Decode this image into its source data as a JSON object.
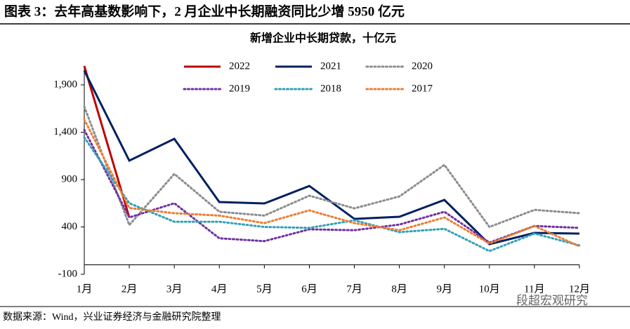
{
  "chart_data": {
    "type": "line",
    "figure_title": "图表 3：去年高基数影响下，2 月企业中长期融资同比少增 5950 亿元",
    "title": "新增企业中长期贷款，十亿元",
    "source": "数据来源：Wind，兴业证券经济与金融研究院整理",
    "watermark": "段超宏观研究",
    "categories": [
      "1月",
      "2月",
      "3月",
      "4月",
      "5月",
      "6月",
      "7月",
      "8月",
      "9月",
      "10月",
      "11月",
      "12月"
    ],
    "ylim": [
      -100,
      2100
    ],
    "yticks": [
      -100,
      400,
      900,
      {
        "value": 1400,
        "label": "1,400"
      },
      {
        "value": 1900,
        "label": "1,900"
      }
    ],
    "series": [
      {
        "name": "2022",
        "color": "#c00000",
        "style": "solid",
        "values": [
          2100,
          500,
          null,
          null,
          null,
          null,
          null,
          null,
          null,
          null,
          null,
          null
        ]
      },
      {
        "name": "2021",
        "color": "#002060",
        "style": "solid",
        "values": [
          2050,
          1100,
          1330,
          663,
          648,
          833,
          485,
          507,
          685,
          218,
          337,
          330
        ]
      },
      {
        "name": "2020",
        "color": "#8c8c8c",
        "style": "dotted",
        "values": [
          1670,
          420,
          960,
          560,
          520,
          730,
          596,
          722,
          1055,
          400,
          580,
          545
        ]
      },
      {
        "name": "2019",
        "color": "#7030a0",
        "style": "dotted",
        "values": [
          1425,
          500,
          650,
          280,
          250,
          375,
          365,
          425,
          560,
          235,
          410,
          390
        ]
      },
      {
        "name": "2018",
        "color": "#31a0b8",
        "style": "dotted",
        "values": [
          1345,
          650,
          455,
          455,
          400,
          390,
          470,
          345,
          380,
          145,
          330,
          205
        ]
      },
      {
        "name": "2017",
        "color": "#ed7d31",
        "style": "dotted",
        "values": [
          1535,
          600,
          545,
          520,
          440,
          575,
          440,
          365,
          500,
          225,
          410,
          195
        ]
      }
    ]
  }
}
